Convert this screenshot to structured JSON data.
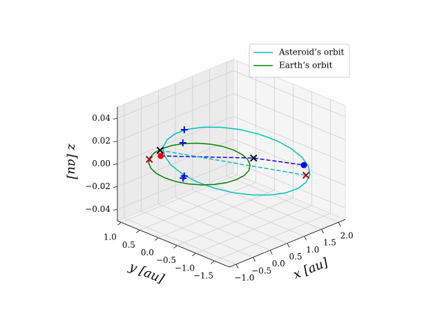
{
  "chart_data": {
    "type": "line3d",
    "xlabel": "x [au]",
    "ylabel": "y [au]",
    "zlabel": "z [au]",
    "xlim": [
      -1.2,
      2.2
    ],
    "ylim": [
      -1.9,
      1.1
    ],
    "zlim": [
      -0.05,
      0.05
    ],
    "xticks": [
      {
        "value": -1.0,
        "label": "−1.0"
      },
      {
        "value": -0.5,
        "label": "−0.5"
      },
      {
        "value": 0.0,
        "label": "0.0"
      },
      0.5,
      {
        "value": 1.0,
        "label": "1.0"
      },
      1.5,
      {
        "value": 2.0,
        "label": "2.0"
      }
    ],
    "yticks": [
      {
        "value": 1.0,
        "label": "1.0"
      },
      0.5,
      {
        "value": 0.0,
        "label": "0.0"
      },
      {
        "value": -0.5,
        "label": "−0.5"
      },
      {
        "value": -1.0,
        "label": "−1.0"
      },
      {
        "value": -1.5,
        "label": "−1.5"
      }
    ],
    "zticks": [
      {
        "value": -0.04,
        "label": "−0.04"
      },
      {
        "value": -0.02,
        "label": "−0.02"
      },
      {
        "value": 0.0,
        "label": "0.00"
      },
      0.02,
      0.04
    ],
    "grid": true,
    "legend": "upper right",
    "series": [
      {
        "name": "Asteroid’s orbit",
        "color": "#00bfbf",
        "x": [
          1.53,
          1.75,
          1.9,
          1.97,
          1.94,
          1.83,
          1.63,
          1.37,
          1.06,
          0.72,
          0.38,
          0.05,
          -0.23,
          -0.45,
          -0.6,
          -0.67,
          -0.64,
          -0.53,
          -0.33,
          -0.07,
          0.24,
          0.58,
          0.92,
          1.25,
          1.53
        ],
        "y": [
          -1.52,
          -1.15,
          -0.72,
          -0.27,
          0.17,
          0.57,
          0.9,
          1.15,
          1.29,
          1.31,
          1.22,
          1.02,
          0.72,
          0.35,
          -0.08,
          -0.53,
          -0.97,
          -1.37,
          -1.7,
          -1.95,
          -2.09,
          -2.11,
          -2.02,
          -1.82,
          -1.52
        ],
        "z": [
          0,
          0,
          0,
          0,
          0,
          0,
          0,
          0,
          0,
          0,
          0,
          0,
          0,
          0,
          0,
          0,
          0,
          0,
          0,
          0,
          0,
          0,
          0,
          0,
          0
        ]
      },
      {
        "name": "Earth’s orbit",
        "color": "#008000",
        "x": [
          1,
          0.97,
          0.87,
          0.71,
          0.5,
          0.26,
          0,
          -0.26,
          -0.5,
          -0.71,
          -0.87,
          -0.97,
          -1,
          -0.97,
          -0.87,
          -0.71,
          -0.5,
          -0.26,
          0,
          0.26,
          0.5,
          0.71,
          0.87,
          0.97,
          1
        ],
        "y": [
          0,
          0.26,
          0.5,
          0.71,
          0.87,
          0.97,
          1,
          0.97,
          0.87,
          0.71,
          0.5,
          0.26,
          0,
          -0.26,
          -0.5,
          -0.71,
          -0.87,
          -0.97,
          -1,
          -0.97,
          -0.87,
          -0.71,
          -0.5,
          -0.26,
          0
        ],
        "z": [
          0,
          0,
          0,
          0,
          0,
          0,
          0,
          0,
          0,
          0,
          0,
          0,
          0,
          0,
          0,
          0,
          0,
          0,
          0,
          0,
          0,
          0,
          0,
          0,
          0
        ]
      },
      {
        "color": "#0000ff",
        "linestyle": "dashed",
        "x": [
          -0.28,
          1.01,
          1.5
        ],
        "y": [
          0.78,
          -0.53,
          -1.43
        ],
        "z": [
          0,
          0,
          0
        ]
      },
      {
        "color": "#00bfbf",
        "linestyle": "dashed",
        "x": [
          -0.09,
          1.17
        ],
        "y": [
          0.97,
          -1.79
        ],
        "z": [
          0,
          0
        ]
      },
      {
        "color": "#0000ff",
        "marker": "+",
        "x": [
          1.0,
          0.51,
          -0.65,
          -0.74
        ],
        "y": [
          1.32,
          0.91,
          -0.19,
          -0.24
        ],
        "z": [
          0,
          0,
          0,
          0
        ]
      },
      {
        "color": "#000000",
        "marker": "x",
        "x": [
          -0.09,
          1.01
        ],
        "y": [
          0.97,
          -0.53
        ],
        "z": [
          0,
          0
        ]
      },
      {
        "color": "#b00000",
        "marker": "x",
        "x": [
          -0.57,
          1.17
        ],
        "y": [
          0.82,
          -1.79
        ],
        "z": [
          0,
          0
        ]
      },
      {
        "color": "#ff0000",
        "marker": "o",
        "x": [
          -0.28
        ],
        "y": [
          0.78
        ],
        "z": [
          0
        ]
      },
      {
        "color": "#0000ff",
        "marker": "o",
        "x": [
          1.5
        ],
        "y": [
          -1.43
        ],
        "z": [
          0
        ]
      }
    ]
  }
}
